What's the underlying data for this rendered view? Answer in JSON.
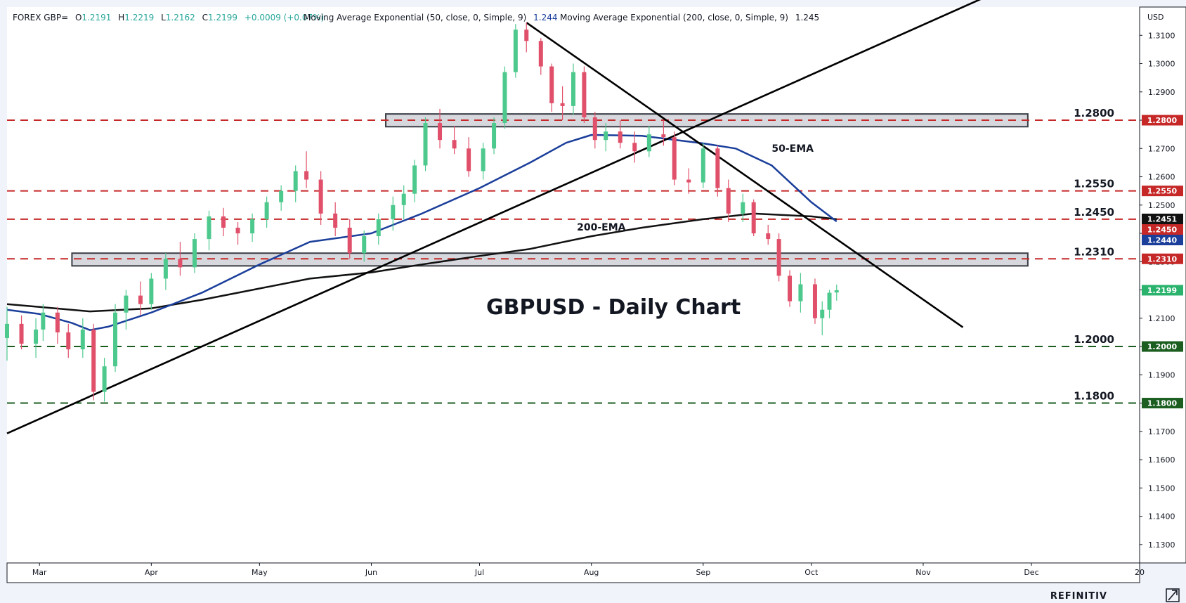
{
  "header": {
    "symbol": "FOREX GBP=",
    "o_label": "O",
    "o_value": "1.2191",
    "h_label": "H",
    "h_value": "1.2219",
    "l_label": "L",
    "l_value": "1.2162",
    "c_label": "C",
    "c_value": "1.2199",
    "change": "+0.0009 (+0.07%)",
    "ema50_label": "Moving Average Exponential (50, close, 0, Simple, 9)",
    "ema50_value": "1.244",
    "ema200_label": "Moving Average Exponential (200, close, 0, Simple, 9)",
    "ema200_value": "1.245"
  },
  "brand": "REFINITIV",
  "colors": {
    "up": "#26a69a",
    "up_fill": "#4ec98e",
    "down": "#e0506a",
    "ema50": "#1a3e9a",
    "ema200": "#111111",
    "resistance": "#c62828",
    "support": "#1b5e20",
    "zone": "#d6d8de",
    "price_badge": "#29b36c"
  },
  "chart_data": {
    "type": "candlestick",
    "title": "GBPUSD - Daily Chart",
    "currency": "USD",
    "ylim": [
      1.1235,
      1.32
    ],
    "y_ticks": [
      1.31,
      1.3,
      1.29,
      1.28,
      1.27,
      1.26,
      1.25,
      1.24,
      1.23,
      1.22,
      1.21,
      1.2,
      1.19,
      1.18,
      1.17,
      1.16,
      1.15,
      1.14,
      1.13
    ],
    "y_tick_labels": [
      "1.3100",
      "1.3000",
      "1.2900",
      "1.2800",
      "1.2700",
      "1.2600",
      "1.2500",
      "1.2400",
      "1.2300",
      "1.2200",
      "1.2100",
      "1.2000",
      "1.1900",
      "1.1800",
      "1.1700",
      "1.1600",
      "1.1500",
      "1.1400",
      "1.1300"
    ],
    "x_range": [
      "2023-02-20",
      "2023-12-31"
    ],
    "x_ticks": [
      {
        "date": "2023-03-01",
        "label": "Mar"
      },
      {
        "date": "2023-04-01",
        "label": "Apr"
      },
      {
        "date": "2023-05-01",
        "label": "May"
      },
      {
        "date": "2023-06-01",
        "label": "Jun"
      },
      {
        "date": "2023-07-01",
        "label": "Jul"
      },
      {
        "date": "2023-08-01",
        "label": "Aug"
      },
      {
        "date": "2023-09-01",
        "label": "Sep"
      },
      {
        "date": "2023-10-01",
        "label": "Oct"
      },
      {
        "date": "2023-11-01",
        "label": "Nov"
      },
      {
        "date": "2023-12-01",
        "label": "Dec"
      },
      {
        "date": "2023-12-31",
        "label": "20"
      }
    ],
    "horizontal_levels": [
      {
        "value": 1.28,
        "label": "1.2800",
        "kind": "resistance"
      },
      {
        "value": 1.255,
        "label": "1.2550",
        "kind": "resistance"
      },
      {
        "value": 1.245,
        "label": "1.2450",
        "kind": "resistance"
      },
      {
        "value": 1.231,
        "label": "1.2310",
        "kind": "resistance"
      },
      {
        "value": 1.2,
        "label": "1.2000",
        "kind": "support"
      },
      {
        "value": 1.18,
        "label": "1.1800",
        "kind": "support"
      }
    ],
    "zones": [
      {
        "from": "2023-06-05",
        "to": "2023-11-30",
        "low": 1.2777,
        "high": 1.2822
      },
      {
        "from": "2023-03-10",
        "to": "2023-11-30",
        "low": 1.2285,
        "high": 1.233
      }
    ],
    "trendlines": [
      {
        "from": {
          "date": "2023-02-20",
          "value": 1.1693
        },
        "to": {
          "date": "2023-12-07",
          "value": 1.3342
        }
      },
      {
        "from": {
          "date": "2023-07-14",
          "value": 1.3145
        },
        "to": {
          "date": "2023-11-12",
          "value": 1.2068
        }
      }
    ],
    "price_badges": [
      {
        "value": 1.28,
        "label": "1.2800",
        "color": "#c62828"
      },
      {
        "value": 1.255,
        "label": "1.2550",
        "color": "#c62828"
      },
      {
        "value": 1.2451,
        "label": "1.2451",
        "color": "#111111"
      },
      {
        "value": 1.245,
        "label": "1.2450",
        "color": "#c62828"
      },
      {
        "value": 1.244,
        "label": "1.2440",
        "color": "#1a3e9a"
      },
      {
        "value": 1.231,
        "label": "1.2310",
        "color": "#c62828"
      },
      {
        "value": 1.2199,
        "label": "1.2199",
        "color": "#29b36c"
      },
      {
        "value": 1.2,
        "label": "1.2000",
        "color": "#1b5e20"
      },
      {
        "value": 1.18,
        "label": "1.1800",
        "color": "#1b5e20"
      }
    ],
    "annotations": [
      {
        "text": "50-EMA",
        "date": "2023-09-20",
        "value": 1.2688
      },
      {
        "text": "200-EMA",
        "date": "2023-07-28",
        "value": 1.241
      }
    ],
    "ema50": {
      "name": "50-EMA",
      "points": [
        [
          "2023-02-20",
          1.213
        ],
        [
          "2023-03-01",
          1.2115
        ],
        [
          "2023-03-10",
          1.2083
        ],
        [
          "2023-03-15",
          1.2058
        ],
        [
          "2023-03-20",
          1.207
        ],
        [
          "2023-04-01",
          1.212
        ],
        [
          "2023-04-15",
          1.219
        ],
        [
          "2023-05-01",
          1.229
        ],
        [
          "2023-05-15",
          1.237
        ],
        [
          "2023-06-01",
          1.24
        ],
        [
          "2023-06-15",
          1.247
        ],
        [
          "2023-07-01",
          1.256
        ],
        [
          "2023-07-15",
          1.265
        ],
        [
          "2023-07-25",
          1.272
        ],
        [
          "2023-08-01",
          1.2748
        ],
        [
          "2023-08-15",
          1.2745
        ],
        [
          "2023-09-01",
          1.2718
        ],
        [
          "2023-09-10",
          1.27
        ],
        [
          "2023-09-20",
          1.264
        ],
        [
          "2023-10-01",
          1.251
        ],
        [
          "2023-10-08",
          1.2442
        ]
      ]
    },
    "ema200": {
      "name": "200-EMA",
      "points": [
        [
          "2023-02-20",
          1.215
        ],
        [
          "2023-03-01",
          1.214
        ],
        [
          "2023-03-15",
          1.2124
        ],
        [
          "2023-04-01",
          1.2135
        ],
        [
          "2023-04-15",
          1.2165
        ],
        [
          "2023-05-01",
          1.2205
        ],
        [
          "2023-05-15",
          1.224
        ],
        [
          "2023-06-01",
          1.2262
        ],
        [
          "2023-06-15",
          1.229
        ],
        [
          "2023-07-01",
          1.232
        ],
        [
          "2023-07-15",
          1.2345
        ],
        [
          "2023-08-01",
          1.239
        ],
        [
          "2023-08-15",
          1.242
        ],
        [
          "2023-09-01",
          1.245
        ],
        [
          "2023-09-15",
          1.247
        ],
        [
          "2023-10-01",
          1.246
        ],
        [
          "2023-10-08",
          1.245
        ]
      ]
    },
    "candles": {
      "fields": [
        "date",
        "open",
        "high",
        "low",
        "close"
      ],
      "rows": [
        [
          "2023-02-20",
          1.203,
          1.214,
          1.195,
          1.208
        ],
        [
          "2023-02-24",
          1.208,
          1.211,
          1.199,
          1.201
        ],
        [
          "2023-02-28",
          1.201,
          1.21,
          1.196,
          1.206
        ],
        [
          "2023-03-02",
          1.206,
          1.215,
          1.202,
          1.212
        ],
        [
          "2023-03-06",
          1.212,
          1.214,
          1.201,
          1.205
        ],
        [
          "2023-03-09",
          1.205,
          1.208,
          1.196,
          1.199
        ],
        [
          "2023-03-13",
          1.199,
          1.21,
          1.196,
          1.206
        ],
        [
          "2023-03-16",
          1.206,
          1.208,
          1.181,
          1.184
        ],
        [
          "2023-03-19",
          1.184,
          1.196,
          1.1805,
          1.193
        ],
        [
          "2023-03-22",
          1.193,
          1.215,
          1.191,
          1.212
        ],
        [
          "2023-03-25",
          1.212,
          1.22,
          1.206,
          1.218
        ],
        [
          "2023-03-29",
          1.218,
          1.223,
          1.211,
          1.215
        ],
        [
          "2023-04-01",
          1.215,
          1.226,
          1.213,
          1.224
        ],
        [
          "2023-04-05",
          1.224,
          1.233,
          1.22,
          1.231
        ],
        [
          "2023-04-09",
          1.231,
          1.237,
          1.225,
          1.228
        ],
        [
          "2023-04-13",
          1.228,
          1.24,
          1.226,
          1.238
        ],
        [
          "2023-04-17",
          1.238,
          1.248,
          1.234,
          1.246
        ],
        [
          "2023-04-21",
          1.246,
          1.249,
          1.239,
          1.242
        ],
        [
          "2023-04-25",
          1.242,
          1.244,
          1.236,
          1.24
        ],
        [
          "2023-04-29",
          1.24,
          1.247,
          1.237,
          1.245
        ],
        [
          "2023-05-03",
          1.245,
          1.253,
          1.242,
          1.251
        ],
        [
          "2023-05-07",
          1.251,
          1.257,
          1.248,
          1.255
        ],
        [
          "2023-05-11",
          1.255,
          1.264,
          1.251,
          1.262
        ],
        [
          "2023-05-14",
          1.262,
          1.269,
          1.256,
          1.259
        ],
        [
          "2023-05-18",
          1.259,
          1.262,
          1.243,
          1.247
        ],
        [
          "2023-05-22",
          1.247,
          1.251,
          1.239,
          1.242
        ],
        [
          "2023-05-26",
          1.242,
          1.245,
          1.231,
          1.233
        ],
        [
          "2023-05-30",
          1.233,
          1.241,
          1.23,
          1.239
        ],
        [
          "2023-06-03",
          1.239,
          1.247,
          1.236,
          1.245
        ],
        [
          "2023-06-07",
          1.245,
          1.253,
          1.241,
          1.25
        ],
        [
          "2023-06-10",
          1.25,
          1.257,
          1.245,
          1.254
        ],
        [
          "2023-06-13",
          1.254,
          1.266,
          1.251,
          1.264
        ],
        [
          "2023-06-16",
          1.264,
          1.281,
          1.262,
          1.279
        ],
        [
          "2023-06-20",
          1.279,
          1.284,
          1.27,
          1.273
        ],
        [
          "2023-06-24",
          1.273,
          1.278,
          1.268,
          1.27
        ],
        [
          "2023-06-28",
          1.27,
          1.274,
          1.26,
          1.262
        ],
        [
          "2023-07-02",
          1.262,
          1.272,
          1.259,
          1.27
        ],
        [
          "2023-07-05",
          1.27,
          1.281,
          1.268,
          1.279
        ],
        [
          "2023-07-08",
          1.279,
          1.299,
          1.277,
          1.297
        ],
        [
          "2023-07-11",
          1.297,
          1.314,
          1.295,
          1.312
        ],
        [
          "2023-07-14",
          1.312,
          1.3145,
          1.304,
          1.308
        ],
        [
          "2023-07-18",
          1.308,
          1.309,
          1.296,
          1.299
        ],
        [
          "2023-07-21",
          1.299,
          1.3,
          1.283,
          1.286
        ],
        [
          "2023-07-24",
          1.286,
          1.292,
          1.28,
          1.285
        ],
        [
          "2023-07-27",
          1.285,
          1.3,
          1.282,
          1.297
        ],
        [
          "2023-07-30",
          1.297,
          1.299,
          1.279,
          1.281
        ],
        [
          "2023-08-02",
          1.281,
          1.283,
          1.27,
          1.273
        ],
        [
          "2023-08-05",
          1.273,
          1.279,
          1.269,
          1.276
        ],
        [
          "2023-08-09",
          1.276,
          1.28,
          1.27,
          1.272
        ],
        [
          "2023-08-13",
          1.272,
          1.276,
          1.265,
          1.269
        ],
        [
          "2023-08-17",
          1.269,
          1.278,
          1.267,
          1.275
        ],
        [
          "2023-08-21",
          1.275,
          1.28,
          1.271,
          1.274
        ],
        [
          "2023-08-24",
          1.274,
          1.276,
          1.257,
          1.259
        ],
        [
          "2023-08-28",
          1.259,
          1.263,
          1.254,
          1.258
        ],
        [
          "2023-09-01",
          1.258,
          1.272,
          1.256,
          1.27
        ],
        [
          "2023-09-05",
          1.27,
          1.271,
          1.253,
          1.256
        ],
        [
          "2023-09-08",
          1.256,
          1.259,
          1.244,
          1.247
        ],
        [
          "2023-09-12",
          1.247,
          1.254,
          1.244,
          1.251
        ],
        [
          "2023-09-15",
          1.251,
          1.252,
          1.239,
          1.24
        ],
        [
          "2023-09-19",
          1.24,
          1.243,
          1.236,
          1.238
        ],
        [
          "2023-09-22",
          1.238,
          1.24,
          1.223,
          1.225
        ],
        [
          "2023-09-25",
          1.225,
          1.227,
          1.214,
          1.216
        ],
        [
          "2023-09-28",
          1.216,
          1.226,
          1.212,
          1.222
        ],
        [
          "2023-10-02",
          1.222,
          1.224,
          1.208,
          1.21
        ],
        [
          "2023-10-04",
          1.21,
          1.216,
          1.204,
          1.213
        ],
        [
          "2023-10-06",
          1.213,
          1.22,
          1.21,
          1.219
        ],
        [
          "2023-10-08",
          1.2191,
          1.2219,
          1.2162,
          1.2199
        ]
      ]
    }
  }
}
